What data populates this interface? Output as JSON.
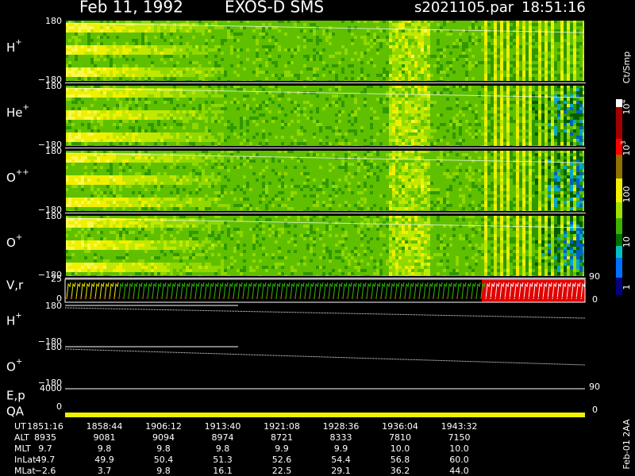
{
  "header": {
    "date": "Feb 11, 1992",
    "instrument": "EXOS-D SMS",
    "file": "s2021105.par",
    "time": "18:51:16"
  },
  "panels": [
    {
      "label": "H",
      "charge": "+",
      "top": "180",
      "bottom": "−180"
    },
    {
      "label": "He",
      "charge": "+",
      "top": "180",
      "bottom": "−180"
    },
    {
      "label": "O",
      "charge": "++",
      "top": "180",
      "bottom": "−180"
    },
    {
      "label": "O",
      "charge": "+",
      "top": "180",
      "bottom": "−180"
    }
  ],
  "vr": {
    "label": "V,r",
    "left_ticks": [
      "25",
      "0"
    ],
    "right_ticks": [
      "90",
      "0"
    ]
  },
  "line_panels": [
    {
      "label": "H",
      "charge": "+",
      "top": "180",
      "bottom": "−180"
    },
    {
      "label": "O",
      "charge": "+",
      "top": "180",
      "bottom": "−180"
    }
  ],
  "ep": {
    "label": "E,p",
    "left_tick": "4000",
    "right_ticks": [
      "90",
      "0"
    ]
  },
  "qa": {
    "label": "QA",
    "left_tick": "0"
  },
  "colorbar": {
    "label": "Ct/Smp",
    "ticks": [
      {
        "text": "10",
        "sup": "4"
      },
      {
        "text": "10",
        "sup": "3"
      },
      {
        "text": "100"
      },
      {
        "text": "10"
      },
      {
        "text": "1"
      }
    ]
  },
  "footer": {
    "rows": [
      {
        "label": "UT",
        "values": [
          "1851:16",
          "1858:44",
          "1906:12",
          "1913:40",
          "1921:08",
          "1928:36",
          "1936:04",
          "1943:32"
        ]
      },
      {
        "label": "ALT",
        "values": [
          "8935",
          "9081",
          "9094",
          "8974",
          "8721",
          "8333",
          "7810",
          "7150"
        ]
      },
      {
        "label": "MLT",
        "values": [
          "9.7",
          "9.8",
          "9.8",
          "9.8",
          "9.9",
          "9.9",
          "10.0",
          "10.0"
        ]
      },
      {
        "label": "InLat",
        "values": [
          "49.7",
          "49.9",
          "50.4",
          "51.3",
          "52.6",
          "54.4",
          "56.8",
          "60.0"
        ]
      },
      {
        "label": "MLat",
        "values": [
          "−2.6",
          "3.7",
          "9.8",
          "16.1",
          "22.5",
          "29.1",
          "36.2",
          "44.0"
        ]
      }
    ]
  },
  "side_note": "Feb-01 2AA"
}
